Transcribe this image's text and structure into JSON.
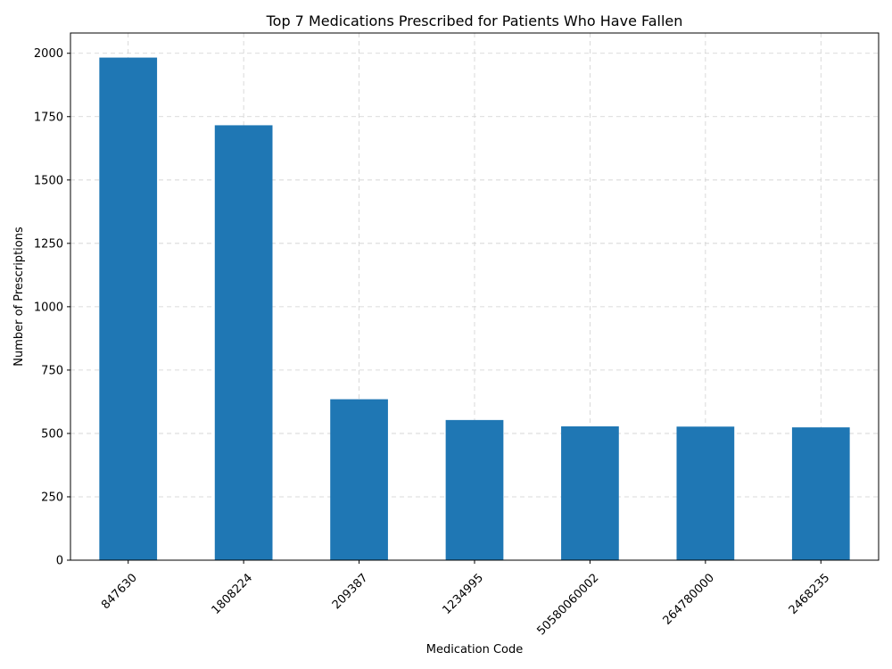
{
  "chart_data": {
    "type": "bar",
    "title": "Top 7 Medications Prescribed for Patients Who Have Fallen",
    "xlabel": "Medication Code",
    "ylabel": "Number of Prescriptions",
    "categories": [
      "847630",
      "1808224",
      "209387",
      "1234995",
      "50580060002",
      "264780000",
      "2468235"
    ],
    "values": [
      1983,
      1716,
      635,
      553,
      528,
      527,
      524
    ],
    "ylim": [
      0,
      2080
    ],
    "yticks": [
      0,
      250,
      500,
      750,
      1000,
      1250,
      1500,
      1750,
      2000
    ],
    "grid": true,
    "bar_color": "#1f77b4"
  }
}
